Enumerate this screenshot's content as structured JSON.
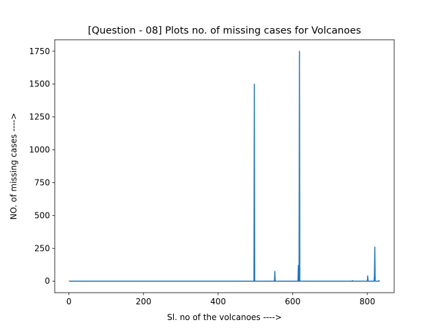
{
  "chart_data": {
    "type": "line",
    "title": "[Question - 08] Plots no. of missing cases for Volcanoes",
    "xlabel": "Sl. no of the volcanoes ---->",
    "ylabel": "NO. of missing cases ---->",
    "xlim": [
      -38,
      872
    ],
    "ylim": [
      -87.5,
      1837.5
    ],
    "xticks": [
      0,
      200,
      400,
      600,
      800
    ],
    "yticks": [
      0,
      250,
      500,
      750,
      1000,
      1250,
      1500,
      1750
    ],
    "grid": false,
    "color": "#1f77b4",
    "series": [
      {
        "x": [
          0,
          496,
          497,
          498,
          499,
          551,
          552,
          553,
          554,
          614,
          615,
          616,
          617,
          618,
          619,
          620,
          759,
          760,
          761,
          800,
          801,
          802,
          803,
          818,
          819,
          820,
          821,
          822,
          830,
          831,
          832,
          833
        ],
        "y": [
          0,
          0,
          1500,
          0,
          0,
          0,
          75,
          0,
          0,
          0,
          120,
          0,
          0,
          1750,
          0,
          0,
          0,
          5,
          0,
          0,
          40,
          0,
          0,
          0,
          40,
          260,
          0,
          0,
          0,
          5,
          0,
          0
        ]
      }
    ]
  }
}
